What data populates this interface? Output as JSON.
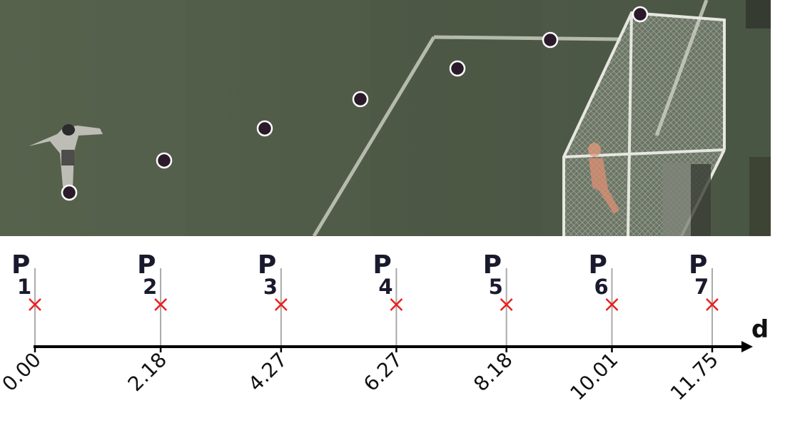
{
  "photo": {
    "description_icons": [
      "player-figure",
      "goal-net",
      "goalkeeper-figure",
      "pitch-lines"
    ],
    "grass_color": "#4d5a45",
    "line_color": "#c8cbc0",
    "point_fill": "#2a1a2a",
    "point_stroke": "#ffffff"
  },
  "axis": {
    "name": "d",
    "color": "#000000",
    "marker_color": "#e8201e",
    "guide_color": "#aaaaaa"
  },
  "chart_data": {
    "type": "scatter",
    "title": "",
    "xlabel": "d",
    "points": [
      {
        "label": "P",
        "sub": "1",
        "d": "0.00"
      },
      {
        "label": "P",
        "sub": "2",
        "d": "2.18"
      },
      {
        "label": "P",
        "sub": "3",
        "d": "4.27"
      },
      {
        "label": "P",
        "sub": "4",
        "d": "6.27"
      },
      {
        "label": "P",
        "sub": "5",
        "d": "8.18"
      },
      {
        "label": "P",
        "sub": "6",
        "d": "10.01"
      },
      {
        "label": "P",
        "sub": "7",
        "d": "11.75"
      }
    ],
    "xlim": [
      0,
      12.5
    ]
  }
}
